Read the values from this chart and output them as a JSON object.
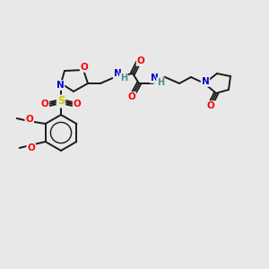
{
  "background_color": "#e8e8e8",
  "bond_color": "#1a1a1a",
  "atom_colors": {
    "O": "#ff0000",
    "N": "#0000cc",
    "S": "#cccc00",
    "H": "#4a8a8a",
    "C": "#1a1a1a"
  },
  "figsize": [
    3.0,
    3.0
  ],
  "dpi": 100
}
